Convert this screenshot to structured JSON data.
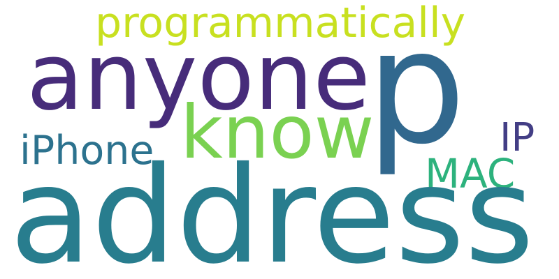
{
  "word_cloud": {
    "words": [
      {
        "text": "programmatically",
        "color": "#c8e020"
      },
      {
        "text": "anyone",
        "color": "#472c7a"
      },
      {
        "text": "p",
        "color": "#31688e"
      },
      {
        "text": "know",
        "color": "#7ad151"
      },
      {
        "text": "iPhone",
        "color": "#2c728e"
      },
      {
        "text": "IP",
        "color": "#433e85"
      },
      {
        "text": "MAC",
        "color": "#2db27d"
      },
      {
        "text": "address",
        "color": "#287d8e"
      }
    ]
  }
}
